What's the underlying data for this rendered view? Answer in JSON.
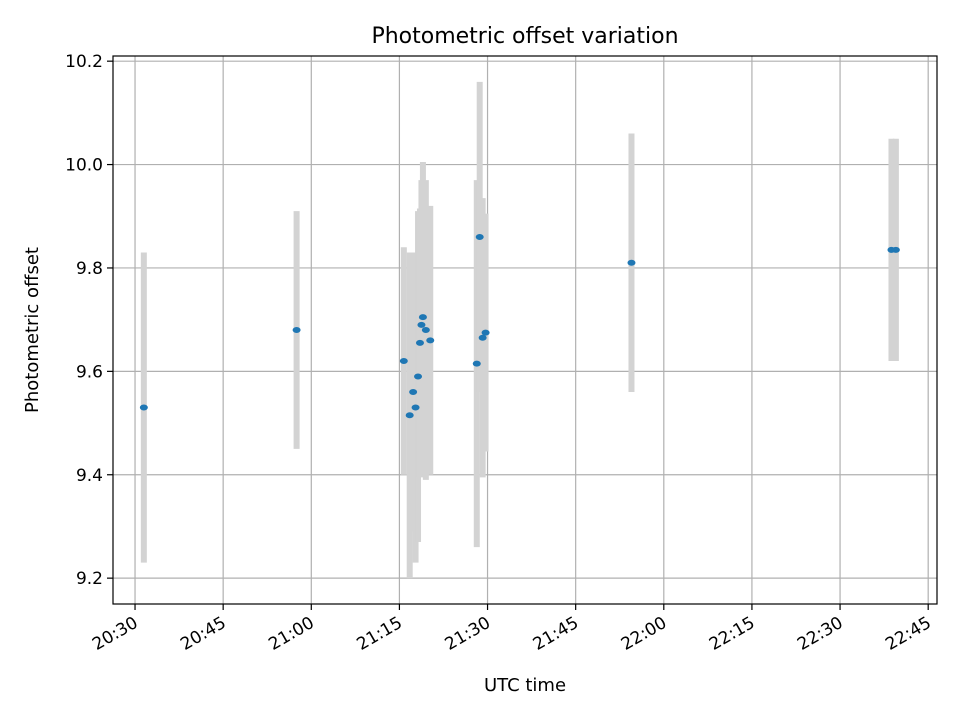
{
  "chart_data": {
    "type": "scatter",
    "title": "Photometric offset variation",
    "xlabel": "UTC time",
    "ylabel": "Photometric offset",
    "x_format": "HH:MM",
    "xlim": [
      "20:26:15",
      "22:46:30"
    ],
    "ylim": [
      9.15,
      10.21
    ],
    "xticks": [
      "20:30",
      "20:45",
      "21:00",
      "21:15",
      "21:30",
      "21:45",
      "22:00",
      "22:15",
      "22:30",
      "22:45"
    ],
    "yticks": [
      9.2,
      9.4,
      9.6,
      9.8,
      10.0,
      10.2
    ],
    "ytick_labels": [
      "9.2",
      "9.4",
      "9.6",
      "9.8",
      "10.0",
      "10.2"
    ],
    "grid": true,
    "colors": {
      "points": "#1f77b4",
      "errorbars": "#d3d3d3",
      "grid": "#b0b0b0",
      "axes": "#000000"
    },
    "series": [
      {
        "points": [
          {
            "x": "20:31:30",
            "y": 9.53,
            "err": 0.3
          },
          {
            "x": "20:57:30",
            "y": 9.68,
            "err": 0.23
          },
          {
            "x": "21:15:45",
            "y": 9.62,
            "err": 0.22
          },
          {
            "x": "21:16:45",
            "y": 9.515,
            "err": 0.315
          },
          {
            "x": "21:17:20",
            "y": 9.56,
            "err": 0.27
          },
          {
            "x": "21:17:45",
            "y": 9.53,
            "err": 0.3
          },
          {
            "x": "21:18:10",
            "y": 9.59,
            "err": 0.32
          },
          {
            "x": "21:18:30",
            "y": 9.655,
            "err": 0.26
          },
          {
            "x": "21:18:45",
            "y": 9.69,
            "err": 0.28
          },
          {
            "x": "21:19:00",
            "y": 9.705,
            "err": 0.3
          },
          {
            "x": "21:19:30",
            "y": 9.68,
            "err": 0.29
          },
          {
            "x": "21:20:15",
            "y": 9.66,
            "err": 0.26
          },
          {
            "x": "21:28:10",
            "y": 9.615,
            "err": 0.355
          },
          {
            "x": "21:28:40",
            "y": 9.86,
            "err": 0.3
          },
          {
            "x": "21:29:10",
            "y": 9.665,
            "err": 0.27
          },
          {
            "x": "21:29:40",
            "y": 9.675,
            "err": 0.23
          },
          {
            "x": "21:54:30",
            "y": 9.81,
            "err": 0.25
          },
          {
            "x": "22:38:45",
            "y": 9.835,
            "err": 0.215
          },
          {
            "x": "22:39:30",
            "y": 9.835,
            "err": 0.215
          }
        ]
      }
    ]
  }
}
